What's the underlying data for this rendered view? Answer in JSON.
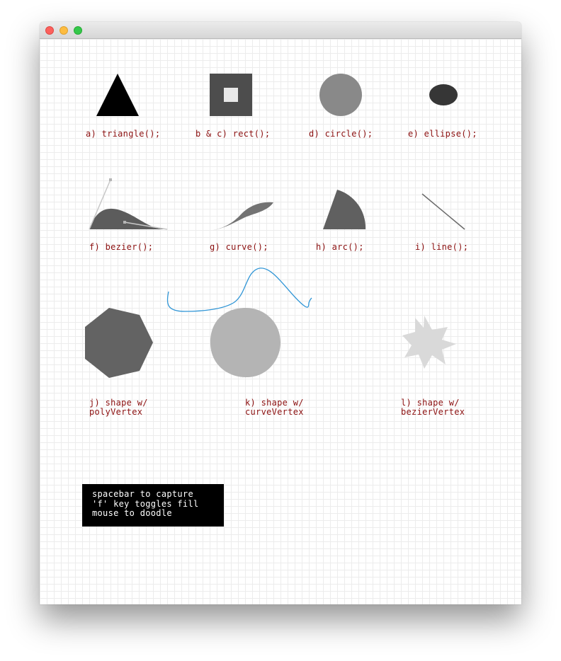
{
  "window": {
    "controls": [
      "close",
      "minimize",
      "zoom"
    ]
  },
  "labels": {
    "a": "a) triangle();",
    "bc": "b & c) rect();",
    "d": "d) circle();",
    "e": "e) ellipse();",
    "f": "f) bezier();",
    "g": "g) curve();",
    "h": "h) arc();",
    "i": "i) line();",
    "j_line1": "j) shape w/",
    "j_line2": "polyVertex",
    "k_line1": "k) shape w/",
    "k_line2": "curveVertex",
    "l_line1": "l) shape w/",
    "l_line2": "bezierVertex"
  },
  "info": {
    "line1": "spacebar to capture",
    "line2": "'f' key toggles fill",
    "line3": "mouse to doodle"
  },
  "colors": {
    "label_text": "#8b0f0f",
    "grid": "#ececec",
    "doodle": "#2f95d6"
  }
}
